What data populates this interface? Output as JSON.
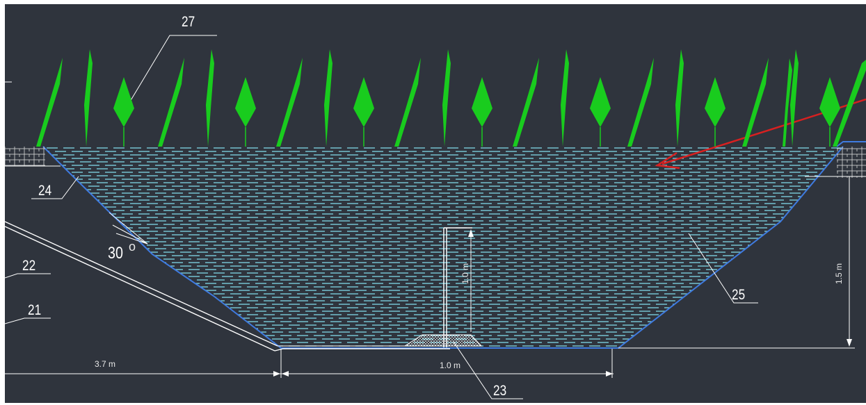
{
  "labels": {
    "l27": "27",
    "l24": "24",
    "l22": "22",
    "l21": "21",
    "l25": "25",
    "l23": "23",
    "angle": "30"
  },
  "dimensions": {
    "left_length": "3.7 m",
    "bottom_width": "1.0 m",
    "depth_small": "1.0 m",
    "depth_total": "1.5 m"
  },
  "colors": {
    "background": "#2f343d",
    "plants": "#19cc1e",
    "water_lines": "#7fd6e6",
    "slope_edge": "#3f7be0",
    "arrow": "#d82020",
    "linework": "#ffffff"
  }
}
